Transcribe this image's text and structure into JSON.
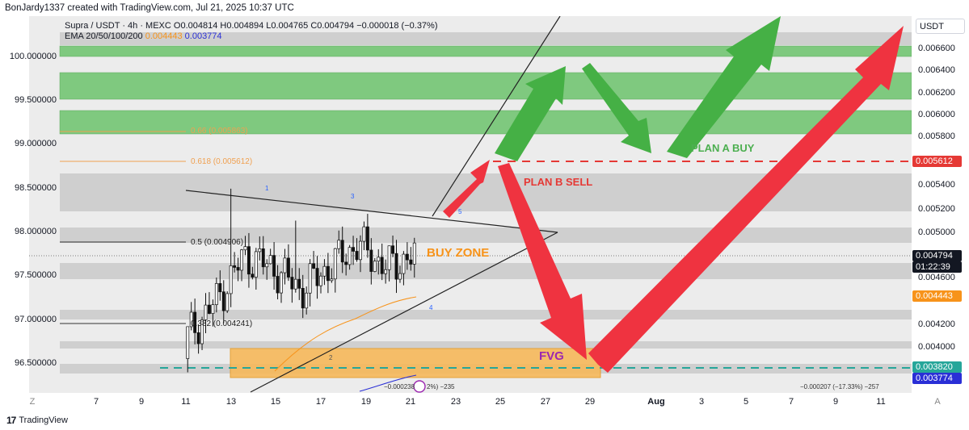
{
  "header": {
    "attribution": "BonJardy1337 created with TradingView.com, Jul 21, 2025 10:37 UTC"
  },
  "legend": {
    "symbol_line": "Supra / USDT · 4h · MEXC  O0.004814  H0.004894  L0.004765  C0.004794  −0.000018 (−0.37%)",
    "ema_label": "EMA 20/50/100/200",
    "ema_val_1": "0.004443",
    "ema_val_2": "0.003774"
  },
  "axis": {
    "currency": "USDT",
    "right_ticks": [
      "0.006600",
      "0.006400",
      "0.006200",
      "0.006000",
      "0.005800",
      "0.005400",
      "0.005200",
      "0.005000",
      "0.004600",
      "0.004200",
      "0.004000"
    ],
    "left_ticks": [
      "100.000000",
      "99.500000",
      "99.000000",
      "98.500000",
      "98.000000",
      "97.500000",
      "97.000000",
      "96.500000"
    ],
    "x_ticks": [
      "7",
      "9",
      "11",
      "13",
      "15",
      "17",
      "19",
      "21",
      "23",
      "25",
      "27",
      "29",
      "Aug",
      "3",
      "5",
      "7",
      "9",
      "11"
    ],
    "x_left_marker": "Z",
    "x_right_marker": "A"
  },
  "price_tags": {
    "level_5612": "0.005612",
    "last_price": "0.004794",
    "countdown": "01:22:39",
    "ema_fast": "0.004443",
    "fvg_level": "0.003820",
    "ema_slow": "0.003774"
  },
  "fib": {
    "f066": "0.66 (0.005863)",
    "f0618": "0.618 (0.005612)",
    "f05": "0.5 (0.004906)",
    "f0382": "0.382 (0.004241)"
  },
  "annotations": {
    "plan_a": "PLAN A BUY",
    "plan_b": "PLAN B SELL",
    "buy_zone": "BUY ZONE",
    "fvg": "FVG",
    "wave_1": "1",
    "wave_2": "2",
    "wave_3": "3",
    "wave_4": "4",
    "wave_5": "5",
    "bottom_note_1": "−0.000238",
    "bottom_note_2": "2%) −235",
    "bottom_note_3": "−0.000207 (−17.33%) −257"
  },
  "footer": {
    "brand": "TradingView"
  },
  "colors": {
    "green_zone": "#7fc97f",
    "gray_zone": "#c8c8c8",
    "orange_zone": "#f6b85a",
    "green_arrow": "#45b045",
    "red_arrow": "#ef3340",
    "fvg_dash": "#26a69a",
    "plan_text": "#4caf50",
    "sell_text": "#e53935",
    "buy_zone_text": "#f7931a",
    "fvg_text": "#9c27b0"
  },
  "chart_data": {
    "type": "candlestick",
    "title": "Supra / USDT · 4h · MEXC",
    "y_right_range": [
      0.0036,
      0.0069
    ],
    "key_levels": {
      "fib_0618": 0.005612,
      "fib_05": 0.004906,
      "fib_0382": 0.004241,
      "fvg": 0.00382,
      "last": 0.004794
    },
    "ohlc_recent": [
      {
        "o": 0.0039,
        "h": 0.0042,
        "l": 0.0036,
        "c": 0.0041
      },
      {
        "o": 0.0041,
        "h": 0.0045,
        "l": 0.0039,
        "c": 0.0044
      },
      {
        "o": 0.0044,
        "h": 0.0049,
        "l": 0.0042,
        "c": 0.0048
      },
      {
        "o": 0.0048,
        "h": 0.0054,
        "l": 0.0046,
        "c": 0.0047
      },
      {
        "o": 0.0047,
        "h": 0.0049,
        "l": 0.0044,
        "c": 0.0045
      },
      {
        "o": 0.0045,
        "h": 0.0048,
        "l": 0.0043,
        "c": 0.0047
      },
      {
        "o": 0.0047,
        "h": 0.0053,
        "l": 0.0045,
        "c": 0.0049
      },
      {
        "o": 0.0049,
        "h": 0.005,
        "l": 0.0046,
        "c": 0.0047
      },
      {
        "o": 0.0047,
        "h": 0.0049,
        "l": 0.0045,
        "c": 0.0048
      }
    ]
  }
}
